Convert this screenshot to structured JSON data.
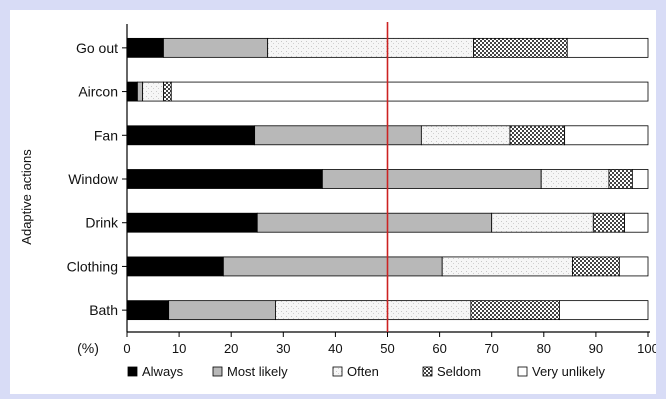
{
  "chart_data": {
    "type": "bar",
    "orientation": "horizontal",
    "stacked": true,
    "categories": [
      "Go out",
      "Aircon",
      "Fan",
      "Window",
      "Drink",
      "Clothing",
      "Bath"
    ],
    "series": [
      {
        "name": "Always",
        "values": [
          7,
          2,
          24.5,
          37.5,
          25,
          18.5,
          8
        ]
      },
      {
        "name": "Most likely",
        "values": [
          20,
          1,
          32,
          42,
          45,
          42,
          20.5
        ]
      },
      {
        "name": "Often",
        "values": [
          39.5,
          4,
          17,
          13,
          19.5,
          25,
          37.5
        ]
      },
      {
        "name": "Seldom",
        "values": [
          18,
          1.5,
          10.5,
          4.5,
          6,
          9,
          17
        ]
      },
      {
        "name": "Very unlikely",
        "values": [
          15.5,
          91.5,
          16,
          3,
          4.5,
          5.5,
          17
        ]
      }
    ],
    "colors": {
      "Always": "#000000",
      "Most likely": "#b8b8b8",
      "Often": "#f2f2f2",
      "Seldom": "#e8e8e8",
      "Very unlikely": "#ffffff"
    },
    "xlabel": "(%)",
    "ylabel": "Adaptive actions",
    "xlim": [
      0,
      100
    ],
    "xticks": [
      "0",
      "10",
      "20",
      "30",
      "40",
      "50",
      "60",
      "70",
      "80",
      "90",
      "100"
    ],
    "reference_line": {
      "x": 50,
      "color": "#cc2222"
    },
    "legend": [
      "Always",
      "Most likely",
      "Often",
      "Seldom",
      "Very unlikely"
    ],
    "legend_position": "bottom",
    "grid": false
  }
}
